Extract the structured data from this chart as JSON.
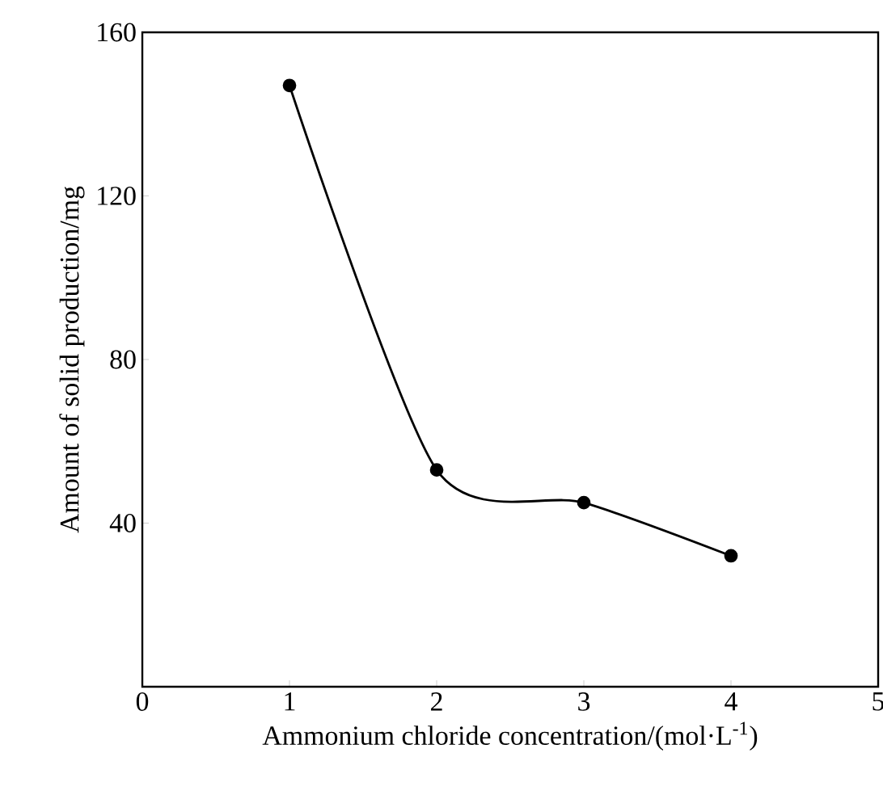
{
  "chart_data": {
    "type": "line",
    "xlabel": "Ammonium chloride concentration/(mol·L$^{-1}$)",
    "ylabel": "Amount of solid production/mg",
    "x": [
      1,
      2,
      3,
      4
    ],
    "series": [
      {
        "color": "#000000",
        "values": [
          147,
          53,
          45,
          32
        ]
      }
    ],
    "xlim": [
      0,
      5
    ],
    "xticks": [
      0,
      1,
      2,
      3,
      4,
      5
    ],
    "ylim": [
      0,
      160
    ],
    "yticks": [
      40,
      80,
      120,
      160
    ],
    "marker": "circle",
    "line_style": "solid"
  }
}
